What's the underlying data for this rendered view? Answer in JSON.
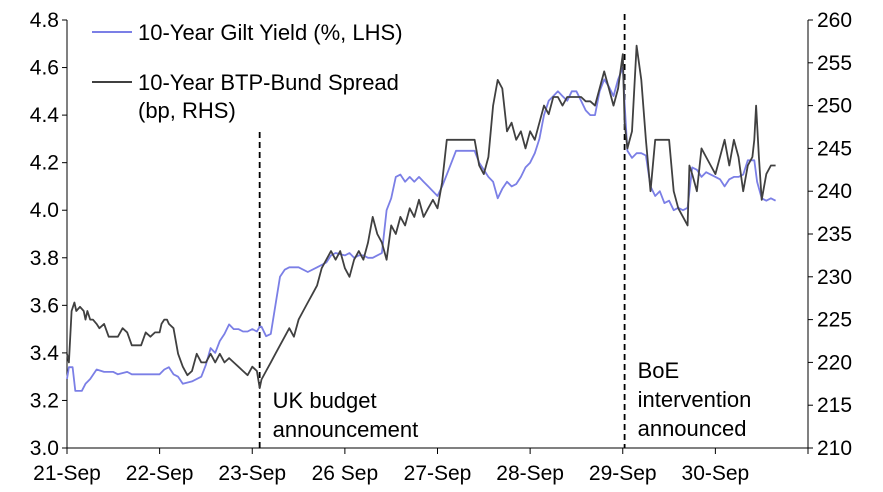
{
  "chart_data": {
    "type": "line",
    "title": "",
    "x_labels": [
      "21-Sep",
      "22-Sep",
      "23-Sep",
      "26 Sep",
      "27-Sep",
      "28-Sep",
      "29-Sep",
      "30-Sep"
    ],
    "left_axis": {
      "min": 3.0,
      "max": 4.8,
      "step": 0.2,
      "ticks": [
        "3.0",
        "3.2",
        "3.4",
        "3.6",
        "3.8",
        "4.0",
        "4.2",
        "4.4",
        "4.6",
        "4.8"
      ]
    },
    "right_axis": {
      "min": 210,
      "max": 260,
      "step": 5,
      "ticks": [
        "210",
        "215",
        "220",
        "225",
        "230",
        "235",
        "240",
        "245",
        "250",
        "255",
        "260"
      ]
    },
    "series": [
      {
        "name": "10-Year Gilt Yield (%, LHS)",
        "axis": "left",
        "color": "#7b7fe6",
        "points": [
          [
            0,
            3.29
          ],
          [
            0.02,
            3.34
          ],
          [
            0.06,
            3.34
          ],
          [
            0.09,
            3.24
          ],
          [
            0.16,
            3.24
          ],
          [
            0.2,
            3.27
          ],
          [
            0.25,
            3.29
          ],
          [
            0.32,
            3.33
          ],
          [
            0.4,
            3.32
          ],
          [
            0.5,
            3.32
          ],
          [
            0.55,
            3.31
          ],
          [
            0.65,
            3.32
          ],
          [
            0.7,
            3.31
          ],
          [
            0.8,
            3.31
          ],
          [
            0.95,
            3.31
          ],
          [
            1.0,
            3.31
          ],
          [
            1.05,
            3.33
          ],
          [
            1.1,
            3.34
          ],
          [
            1.15,
            3.31
          ],
          [
            1.2,
            3.3
          ],
          [
            1.25,
            3.27
          ],
          [
            1.35,
            3.28
          ],
          [
            1.45,
            3.3
          ],
          [
            1.5,
            3.35
          ],
          [
            1.55,
            3.42
          ],
          [
            1.6,
            3.4
          ],
          [
            1.65,
            3.45
          ],
          [
            1.7,
            3.48
          ],
          [
            1.75,
            3.52
          ],
          [
            1.8,
            3.5
          ],
          [
            1.85,
            3.5
          ],
          [
            1.9,
            3.49
          ],
          [
            1.95,
            3.49
          ],
          [
            2.0,
            3.5
          ],
          [
            2.05,
            3.49
          ],
          [
            2.08,
            3.51
          ],
          [
            2.1,
            3.51
          ],
          [
            2.15,
            3.47
          ],
          [
            2.2,
            3.48
          ],
          [
            2.25,
            3.6
          ],
          [
            2.3,
            3.72
          ],
          [
            2.35,
            3.75
          ],
          [
            2.4,
            3.76
          ],
          [
            2.5,
            3.76
          ],
          [
            2.6,
            3.74
          ],
          [
            2.7,
            3.76
          ],
          [
            2.8,
            3.78
          ],
          [
            2.85,
            3.81
          ],
          [
            2.9,
            3.82
          ],
          [
            3.0,
            3.81
          ],
          [
            3.05,
            3.82
          ],
          [
            3.1,
            3.8
          ],
          [
            3.15,
            3.81
          ],
          [
            3.2,
            3.81
          ],
          [
            3.25,
            3.8
          ],
          [
            3.3,
            3.8
          ],
          [
            3.4,
            3.82
          ],
          [
            3.45,
            4.0
          ],
          [
            3.5,
            4.05
          ],
          [
            3.55,
            4.14
          ],
          [
            3.6,
            4.15
          ],
          [
            3.65,
            4.12
          ],
          [
            3.7,
            4.14
          ],
          [
            3.75,
            4.12
          ],
          [
            3.8,
            4.14
          ],
          [
            3.85,
            4.12
          ],
          [
            3.9,
            4.1
          ],
          [
            3.95,
            4.08
          ],
          [
            4.0,
            4.06
          ],
          [
            4.05,
            4.1
          ],
          [
            4.1,
            4.15
          ],
          [
            4.15,
            4.2
          ],
          [
            4.2,
            4.25
          ],
          [
            4.3,
            4.25
          ],
          [
            4.4,
            4.25
          ],
          [
            4.45,
            4.2
          ],
          [
            4.5,
            4.17
          ],
          [
            4.55,
            4.14
          ],
          [
            4.6,
            4.12
          ],
          [
            4.65,
            4.05
          ],
          [
            4.7,
            4.09
          ],
          [
            4.75,
            4.12
          ],
          [
            4.8,
            4.1
          ],
          [
            4.85,
            4.11
          ],
          [
            4.9,
            4.14
          ],
          [
            4.95,
            4.18
          ],
          [
            5.0,
            4.2
          ],
          [
            5.05,
            4.24
          ],
          [
            5.1,
            4.3
          ],
          [
            5.15,
            4.4
          ],
          [
            5.2,
            4.46
          ],
          [
            5.25,
            4.48
          ],
          [
            5.3,
            4.5
          ],
          [
            5.35,
            4.48
          ],
          [
            5.4,
            4.46
          ],
          [
            5.45,
            4.5
          ],
          [
            5.5,
            4.5
          ],
          [
            5.55,
            4.46
          ],
          [
            5.6,
            4.42
          ],
          [
            5.65,
            4.4
          ],
          [
            5.7,
            4.4
          ],
          [
            5.75,
            4.5
          ],
          [
            5.8,
            4.55
          ],
          [
            5.85,
            4.52
          ],
          [
            5.9,
            4.48
          ],
          [
            5.95,
            4.55
          ],
          [
            6.0,
            4.6
          ],
          [
            6.02,
            4.45
          ],
          [
            6.05,
            4.25
          ],
          [
            6.1,
            4.22
          ],
          [
            6.15,
            4.24
          ],
          [
            6.2,
            4.24
          ],
          [
            6.25,
            4.23
          ],
          [
            6.3,
            4.1
          ],
          [
            6.35,
            4.06
          ],
          [
            6.4,
            4.08
          ],
          [
            6.45,
            4.03
          ],
          [
            6.5,
            4.04
          ],
          [
            6.55,
            4.0
          ],
          [
            6.6,
            4.01
          ],
          [
            6.65,
            4.0
          ],
          [
            6.7,
            4.01
          ],
          [
            6.75,
            4.18
          ],
          [
            6.8,
            4.17
          ],
          [
            6.85,
            4.14
          ],
          [
            6.9,
            4.16
          ],
          [
            6.95,
            4.15
          ],
          [
            7.0,
            4.14
          ],
          [
            7.05,
            4.13
          ],
          [
            7.1,
            4.1
          ],
          [
            7.15,
            4.13
          ],
          [
            7.2,
            4.14
          ],
          [
            7.25,
            4.14
          ],
          [
            7.3,
            4.15
          ],
          [
            7.35,
            4.21
          ],
          [
            7.4,
            4.21
          ],
          [
            7.42,
            4.21
          ],
          [
            7.45,
            4.12
          ],
          [
            7.5,
            4.05
          ],
          [
            7.55,
            4.04
          ],
          [
            7.6,
            4.05
          ],
          [
            7.65,
            4.04
          ]
        ]
      },
      {
        "name": "10-Year BTP-Bund Spread (bp, RHS)",
        "axis": "right",
        "color": "#404040",
        "points": [
          [
            0,
            221
          ],
          [
            0.02,
            220
          ],
          [
            0.05,
            226
          ],
          [
            0.08,
            227
          ],
          [
            0.1,
            226
          ],
          [
            0.14,
            226.5
          ],
          [
            0.18,
            226
          ],
          [
            0.2,
            225
          ],
          [
            0.22,
            226
          ],
          [
            0.25,
            225
          ],
          [
            0.28,
            225
          ],
          [
            0.32,
            224.5
          ],
          [
            0.35,
            224
          ],
          [
            0.4,
            224.5
          ],
          [
            0.45,
            223
          ],
          [
            0.5,
            223
          ],
          [
            0.55,
            223
          ],
          [
            0.6,
            224
          ],
          [
            0.65,
            223.5
          ],
          [
            0.7,
            222
          ],
          [
            0.8,
            222
          ],
          [
            0.85,
            223.5
          ],
          [
            0.9,
            223
          ],
          [
            0.95,
            223.5
          ],
          [
            1.0,
            223.5
          ],
          [
            1.02,
            224.5
          ],
          [
            1.05,
            225
          ],
          [
            1.08,
            225
          ],
          [
            1.1,
            224.5
          ],
          [
            1.15,
            224
          ],
          [
            1.2,
            221
          ],
          [
            1.25,
            219.5
          ],
          [
            1.3,
            218.5
          ],
          [
            1.35,
            219
          ],
          [
            1.4,
            221
          ],
          [
            1.45,
            220
          ],
          [
            1.5,
            220
          ],
          [
            1.55,
            221
          ],
          [
            1.6,
            220
          ],
          [
            1.65,
            221
          ],
          [
            1.7,
            220
          ],
          [
            1.75,
            220.5
          ],
          [
            1.8,
            220
          ],
          [
            1.85,
            219.5
          ],
          [
            1.9,
            219
          ],
          [
            1.95,
            218.5
          ],
          [
            2.0,
            219.5
          ],
          [
            2.05,
            219
          ],
          [
            2.08,
            217
          ],
          [
            2.1,
            218
          ],
          [
            2.15,
            219
          ],
          [
            2.2,
            220
          ],
          [
            2.25,
            221
          ],
          [
            2.3,
            222
          ],
          [
            2.35,
            223
          ],
          [
            2.4,
            224
          ],
          [
            2.45,
            223
          ],
          [
            2.5,
            225
          ],
          [
            2.55,
            226
          ],
          [
            2.6,
            227
          ],
          [
            2.65,
            228
          ],
          [
            2.7,
            229
          ],
          [
            2.75,
            231
          ],
          [
            2.8,
            232
          ],
          [
            2.85,
            233
          ],
          [
            2.9,
            232
          ],
          [
            2.95,
            233
          ],
          [
            3.0,
            231
          ],
          [
            3.05,
            230
          ],
          [
            3.1,
            232
          ],
          [
            3.15,
            233
          ],
          [
            3.2,
            232
          ],
          [
            3.25,
            234
          ],
          [
            3.3,
            237
          ],
          [
            3.35,
            235
          ],
          [
            3.4,
            234
          ],
          [
            3.45,
            232
          ],
          [
            3.5,
            236
          ],
          [
            3.55,
            235
          ],
          [
            3.6,
            237
          ],
          [
            3.65,
            236
          ],
          [
            3.7,
            238
          ],
          [
            3.75,
            237
          ],
          [
            3.8,
            239
          ],
          [
            3.85,
            237
          ],
          [
            3.9,
            238
          ],
          [
            3.95,
            239
          ],
          [
            4.0,
            238
          ],
          [
            4.05,
            241
          ],
          [
            4.1,
            246
          ],
          [
            4.15,
            246
          ],
          [
            4.2,
            246
          ],
          [
            4.3,
            246
          ],
          [
            4.4,
            246
          ],
          [
            4.45,
            243
          ],
          [
            4.5,
            242
          ],
          [
            4.55,
            244
          ],
          [
            4.6,
            250
          ],
          [
            4.65,
            253
          ],
          [
            4.7,
            252
          ],
          [
            4.75,
            247
          ],
          [
            4.8,
            248
          ],
          [
            4.85,
            246
          ],
          [
            4.9,
            247
          ],
          [
            4.95,
            245
          ],
          [
            5.0,
            247
          ],
          [
            5.05,
            246
          ],
          [
            5.1,
            248
          ],
          [
            5.15,
            250
          ],
          [
            5.2,
            249
          ],
          [
            5.25,
            251
          ],
          [
            5.3,
            251
          ],
          [
            5.35,
            250
          ],
          [
            5.4,
            251
          ],
          [
            5.45,
            251
          ],
          [
            5.5,
            251
          ],
          [
            5.55,
            251
          ],
          [
            5.6,
            250.5
          ],
          [
            5.65,
            250.5
          ],
          [
            5.7,
            250
          ],
          [
            5.75,
            252
          ],
          [
            5.8,
            254
          ],
          [
            5.85,
            252
          ],
          [
            5.9,
            250
          ],
          [
            5.95,
            252
          ],
          [
            6.0,
            256
          ],
          [
            6.02,
            248
          ],
          [
            6.05,
            245
          ],
          [
            6.1,
            247
          ],
          [
            6.15,
            257
          ],
          [
            6.2,
            253
          ],
          [
            6.25,
            246
          ],
          [
            6.3,
            240
          ],
          [
            6.35,
            246
          ],
          [
            6.4,
            246
          ],
          [
            6.45,
            246
          ],
          [
            6.5,
            246
          ],
          [
            6.55,
            240
          ],
          [
            6.6,
            238
          ],
          [
            6.65,
            237
          ],
          [
            6.7,
            236
          ],
          [
            6.72,
            243
          ],
          [
            6.75,
            242
          ],
          [
            6.8,
            240
          ],
          [
            6.85,
            245
          ],
          [
            6.9,
            244
          ],
          [
            6.95,
            243
          ],
          [
            7.0,
            242
          ],
          [
            7.05,
            244
          ],
          [
            7.1,
            246
          ],
          [
            7.15,
            243
          ],
          [
            7.2,
            246
          ],
          [
            7.25,
            244
          ],
          [
            7.3,
            240
          ],
          [
            7.35,
            243
          ],
          [
            7.4,
            244
          ],
          [
            7.42,
            246
          ],
          [
            7.44,
            250
          ],
          [
            7.47,
            244
          ],
          [
            7.5,
            239
          ],
          [
            7.55,
            242
          ],
          [
            7.6,
            243
          ],
          [
            7.65,
            243
          ]
        ]
      }
    ],
    "annotations": [
      {
        "x": 2.08,
        "lines": [
          "UK budget",
          "announcement"
        ]
      },
      {
        "x": 6.02,
        "lines": [
          "BoE",
          "intervention",
          "announced"
        ]
      }
    ],
    "legend": [
      {
        "line1": "10-Year Gilt Yield (%, LHS)",
        "line2": ""
      },
      {
        "line1": "10-Year BTP-Bund Spread",
        "line2": "(bp, RHS)"
      }
    ]
  }
}
